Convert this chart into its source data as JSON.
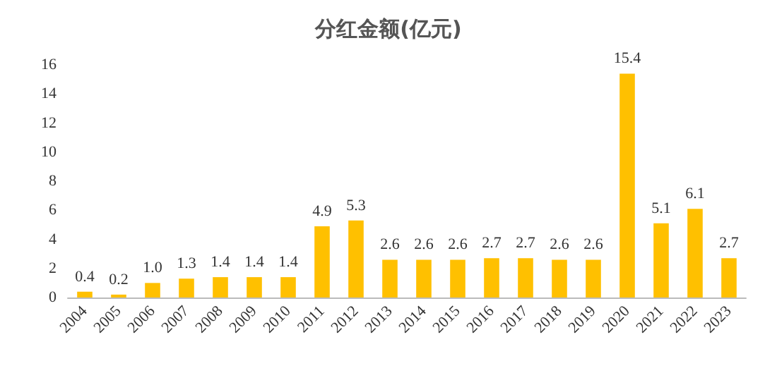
{
  "chart_data": {
    "type": "bar",
    "title": "分红金额(亿元)",
    "categories": [
      "2004",
      "2005",
      "2006",
      "2007",
      "2008",
      "2009",
      "2010",
      "2011",
      "2012",
      "2013",
      "2014",
      "2015",
      "2016",
      "2017",
      "2018",
      "2019",
      "2020",
      "2021",
      "2022",
      "2023"
    ],
    "values": [
      0.4,
      0.2,
      1.0,
      1.3,
      1.4,
      1.4,
      1.4,
      4.9,
      5.3,
      2.6,
      2.6,
      2.6,
      2.7,
      2.7,
      2.6,
      2.6,
      15.4,
      5.1,
      6.1,
      2.7
    ],
    "value_labels": [
      "0.4",
      "0.2",
      "1.0",
      "1.3",
      "1.4",
      "1.4",
      "1.4",
      "4.9",
      "5.3",
      "2.6",
      "2.6",
      "2.6",
      "2.7",
      "2.7",
      "2.6",
      "2.6",
      "15.4",
      "5.1",
      "6.1",
      "2.7"
    ],
    "color": "#ffc000",
    "ylim": [
      0,
      16
    ],
    "yticks": [
      0,
      2,
      4,
      6,
      8,
      10,
      12,
      14,
      16
    ],
    "grid": false
  }
}
